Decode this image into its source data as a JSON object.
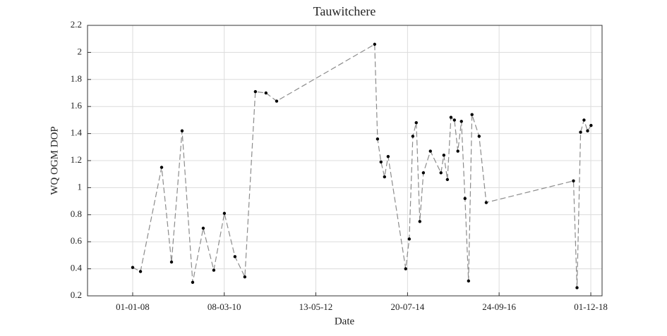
{
  "chart_data": {
    "type": "line",
    "title": "Tauwitchere",
    "x_label": "Date",
    "y_label": "WQ OGM DOP",
    "x": [
      "2008-01-01",
      "2008-03-09",
      "2008-09-09",
      "2008-12-04",
      "2009-03-06",
      "2009-06-06",
      "2009-09-06",
      "2009-12-07",
      "2010-03-09",
      "2010-06-09",
      "2010-09-03",
      "2010-12-04",
      "2011-03-06",
      "2011-06-07",
      "2013-10-07",
      "2013-11-01",
      "2013-12-01",
      "2014-01-01",
      "2014-02-01",
      "2014-07-04",
      "2014-08-04",
      "2014-09-04",
      "2014-10-04",
      "2014-11-04",
      "2014-12-05",
      "2015-02-04",
      "2015-05-07",
      "2015-06-01",
      "2015-07-02",
      "2015-08-02",
      "2015-09-01",
      "2015-10-01",
      "2015-11-01",
      "2015-12-02",
      "2016-01-02",
      "2016-02-01",
      "2016-04-03",
      "2016-06-04",
      "2018-07-03",
      "2018-08-03",
      "2018-09-03",
      "2018-10-03",
      "2018-11-03",
      "2018-12-03"
    ],
    "values": [
      0.41,
      0.38,
      1.15,
      0.45,
      1.42,
      0.3,
      0.7,
      0.39,
      0.81,
      0.49,
      0.34,
      1.71,
      1.7,
      1.64,
      2.06,
      1.36,
      1.19,
      1.08,
      1.23,
      0.4,
      0.62,
      1.38,
      1.48,
      0.75,
      1.11,
      1.27,
      1.11,
      1.24,
      1.06,
      1.52,
      1.5,
      1.27,
      1.49,
      0.92,
      0.31,
      1.54,
      1.38,
      0.89,
      1.05,
      0.26,
      1.41,
      1.5,
      1.42,
      1.46
    ],
    "color": "#8c8c8c",
    "marker_color": "#000000",
    "xlim": [
      "2006-12-04",
      "2019-03-09"
    ],
    "xticks": [
      {
        "value": "2008-01-01",
        "label": "01-01-08"
      },
      {
        "value": "2010-03-08",
        "label": "08-03-10"
      },
      {
        "value": "2012-05-13",
        "label": "13-05-12"
      },
      {
        "value": "2014-07-20",
        "label": "20-07-14"
      },
      {
        "value": "2016-09-24",
        "label": "24-09-16"
      },
      {
        "value": "2018-12-01",
        "label": "01-12-18"
      }
    ],
    "ylim": [
      0.2,
      2.2
    ],
    "yticks": [
      0.2,
      0.4,
      0.6,
      0.8,
      1,
      1.2,
      1.4,
      1.6,
      1.8,
      2,
      2.2
    ],
    "grid": true
  }
}
